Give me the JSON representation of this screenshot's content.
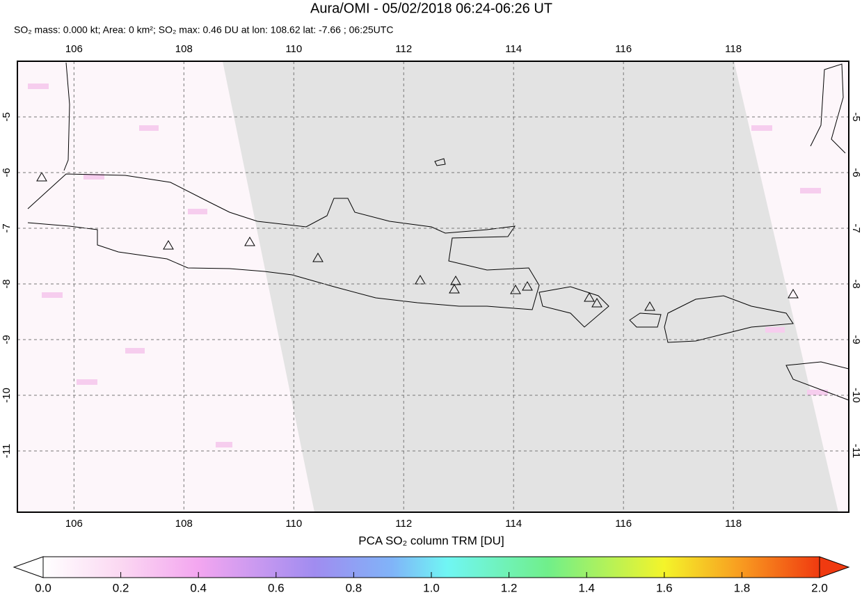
{
  "title": "Aura/OMI - 05/02/2018 06:24-06:26 UT",
  "subtitle": "SO₂ mass: 0.000 kt; Area: 0 km²; SO₂ max: 0.46 DU at lon: 108.62 lat: -7.66 ; 06:25UTC",
  "map": {
    "xlim": [
      104.97,
      120.1
    ],
    "ylim": [
      -12.1,
      -4
    ],
    "xticks": [
      106,
      108,
      110,
      112,
      114,
      116,
      118
    ],
    "yticks": [
      -5,
      -6,
      -7,
      -8,
      -9,
      -10,
      -11
    ]
  },
  "colorbar": {
    "label": "PCA SO₂ column TRM [DU]",
    "range": [
      0,
      2
    ],
    "ticks": [
      {
        "value": 0,
        "label": "0.0"
      },
      0.2,
      0.4,
      0.6,
      0.8,
      {
        "value": 1,
        "label": "1.0"
      },
      1.2,
      1.4,
      1.6,
      1.8,
      {
        "value": 2,
        "label": "2.0"
      }
    ]
  }
}
